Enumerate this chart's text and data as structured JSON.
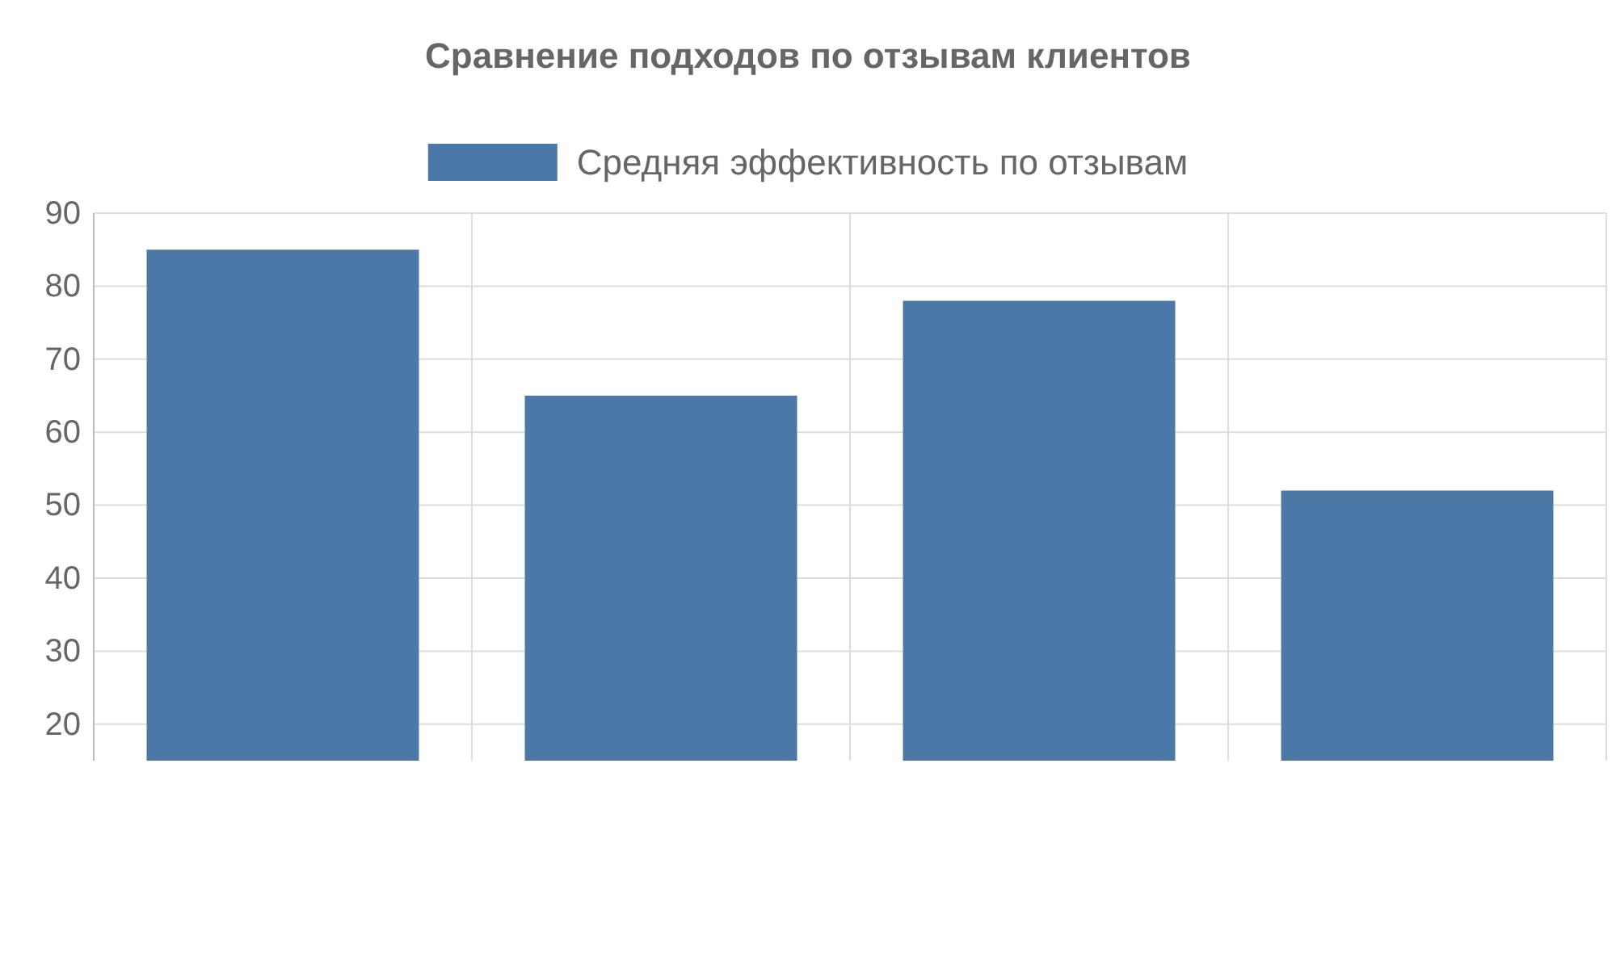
{
  "chart_data": {
    "type": "bar",
    "title": "Сравнение подходов по отзывам клиентов",
    "categories": [
      null,
      null,
      null,
      null
    ],
    "series": [
      {
        "name": "Средняя эффективность по отзывам",
        "color": "#4c78a8",
        "values": [
          85,
          65,
          78,
          52
        ]
      }
    ],
    "ylim": [
      15,
      90
    ],
    "yticks": [
      20,
      30,
      40,
      50,
      60,
      70,
      80,
      90
    ],
    "grid": true,
    "legend": "top"
  }
}
